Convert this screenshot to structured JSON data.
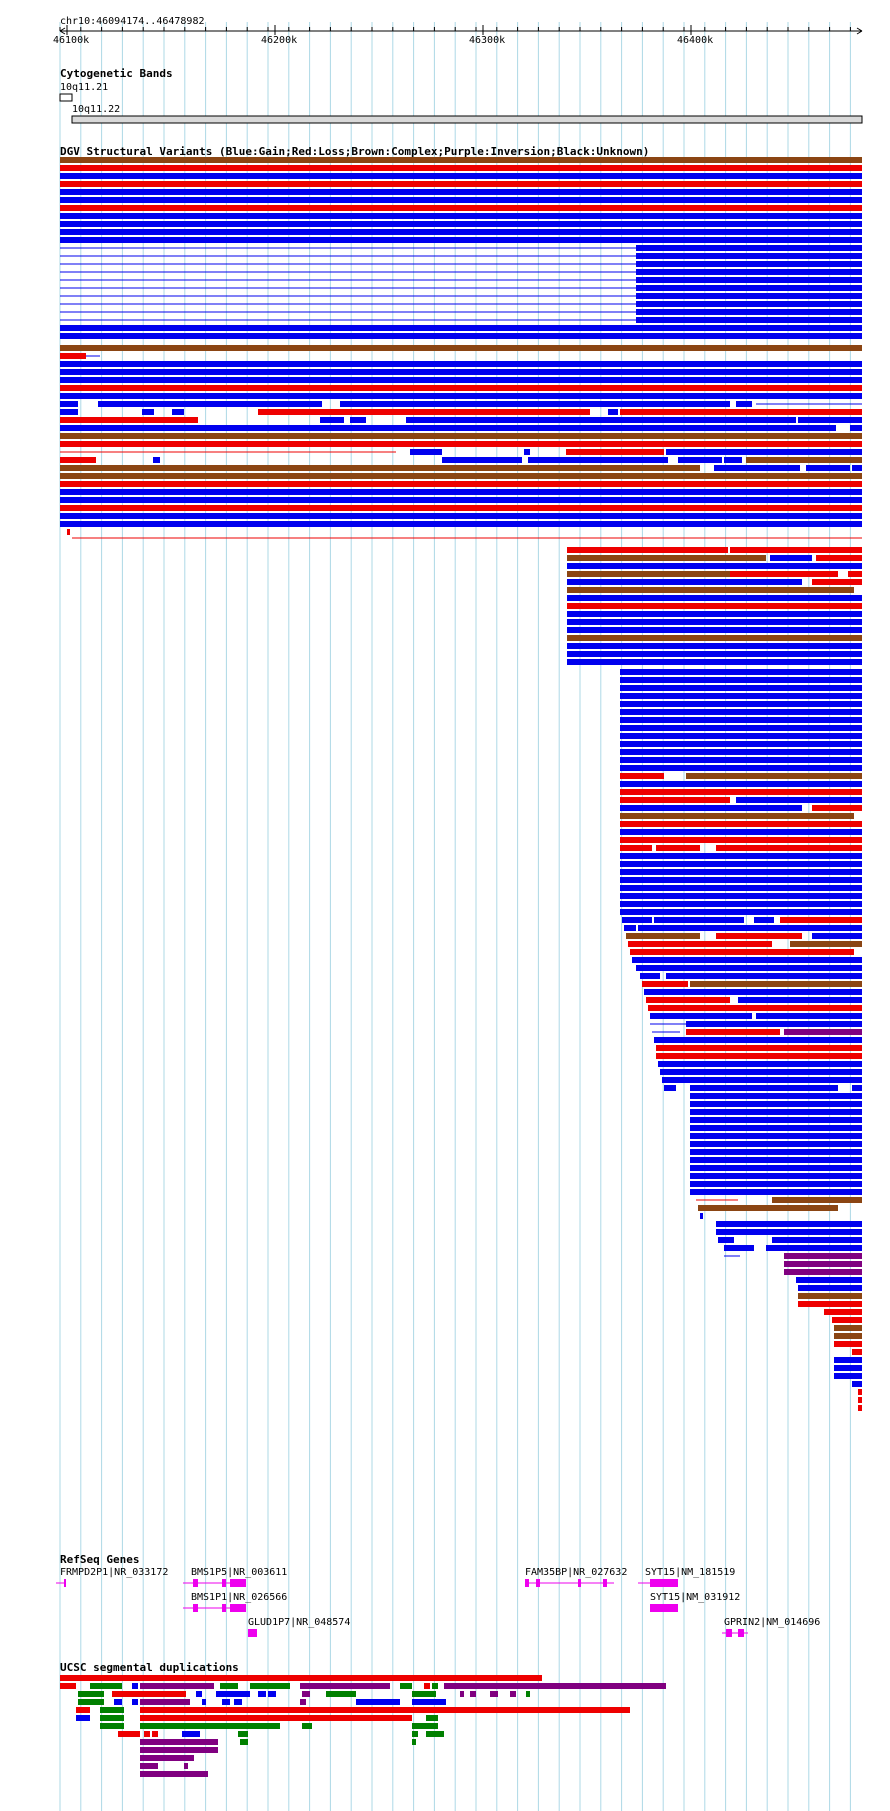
{
  "locus": "chr10:46094174..46478982",
  "ruler": {
    "ticks": [
      "46100k",
      "46200k",
      "46300k",
      "46400k"
    ]
  },
  "colors": {
    "gain": "#0000ee",
    "loss": "#ee0000",
    "complex": "#8b4513",
    "inversion": "#800080",
    "unknown": "#000000",
    "gene": "#ee00ee",
    "dup_red": "#ee0000",
    "dup_green": "#008000",
    "dup_blue": "#0000ee",
    "dup_purple": "#800080",
    "grid": "#add8e6"
  },
  "cyto": {
    "title": "Cytogenetic Bands",
    "bands": [
      {
        "name": "10q11.21"
      },
      {
        "name": "10q11.22"
      }
    ]
  },
  "dgv": {
    "title": "DGV Structural Variants (Blue:Gain;Red:Loss;Brown:Complex;Purple:Inversion;Black:Unknown)"
  },
  "refseq": {
    "title": "RefSeq Genes",
    "genes": [
      {
        "label": "FRMPD2P1|NR_033172"
      },
      {
        "label": "BMS1P5|NR_003611"
      },
      {
        "label": "BMS1P1|NR_026566"
      },
      {
        "label": "GLUD1P7|NR_048574"
      },
      {
        "label": "FAM35BP|NR_027632"
      },
      {
        "label": "SYT15|NM_181519"
      },
      {
        "label": "SYT15|NM_031912"
      },
      {
        "label": "GPRIN2|NM_014696"
      }
    ]
  },
  "segdup": {
    "title": "UCSC segmental duplications"
  }
}
